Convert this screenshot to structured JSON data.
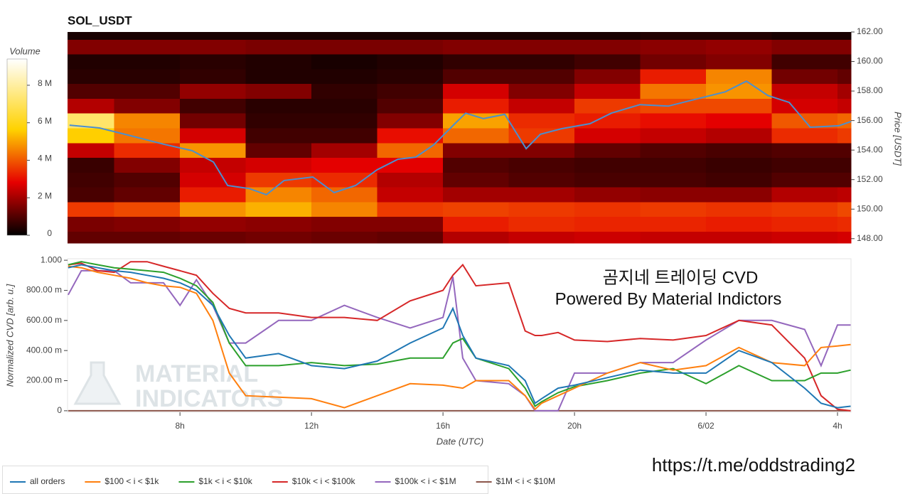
{
  "chart_data": [
    {
      "type": "heatmap",
      "title": "SOL_USDT",
      "ylabel": "Price [USDT]",
      "xlim": [
        4.58,
        28.41
      ],
      "ylim": [
        147.7,
        162
      ],
      "yticks": [
        {
          "value": 148,
          "label": "148.00"
        },
        {
          "value": 150,
          "label": "150.00"
        },
        {
          "value": 152,
          "label": "152.00"
        },
        {
          "value": 154,
          "label": "154.00"
        },
        {
          "value": 156,
          "label": "156.00"
        },
        {
          "value": 158,
          "label": "158.00"
        },
        {
          "value": 160,
          "label": "160.00"
        },
        {
          "value": 162,
          "label": "162.00"
        }
      ],
      "x_edges": [
        4.58,
        6,
        8,
        10,
        12,
        14,
        16,
        18,
        20,
        22,
        24,
        26,
        28,
        28.41
      ],
      "y_edges": [
        147.7,
        148.5,
        149.5,
        150.5,
        151.5,
        152.5,
        153.5,
        154.5,
        155.5,
        156.5,
        157.5,
        158.5,
        159.5,
        160.5,
        161.5,
        162
      ],
      "z": [
        [
          1200000.0,
          1200000.0,
          1300000.0,
          1400000.0,
          1300000.0,
          1200000.0,
          2200000.0,
          2400000.0,
          2500000.0,
          2400000.0,
          2400000.0,
          2500000.0,
          2600000.0
        ],
        [
          1500000.0,
          1600000.0,
          1800000.0,
          1700000.0,
          1600000.0,
          1600000.0,
          3200000.0,
          3400000.0,
          3300000.0,
          3300000.0,
          3200000.0,
          3300000.0,
          3400000.0
        ],
        [
          3600000.0,
          3800000.0,
          4800000.0,
          5200000.0,
          4600000.0,
          3600000.0,
          3700000.0,
          3600000.0,
          3500000.0,
          3600000.0,
          3500000.0,
          3600000.0,
          3800000.0
        ],
        [
          900000.0,
          1200000.0,
          3200000.0,
          4600000.0,
          4200000.0,
          2400000.0,
          2000000.0,
          2000000.0,
          1800000.0,
          1700000.0,
          1700000.0,
          2200000.0,
          2300000.0
        ],
        [
          800000.0,
          1000000.0,
          2600000.0,
          3600000.0,
          3400000.0,
          2200000.0,
          1200000.0,
          1000000.0,
          900000.0,
          900000.0,
          800000.0,
          1000000.0,
          1000000.0
        ],
        [
          700000.0,
          1600000.0,
          2400000.0,
          2600000.0,
          2800000.0,
          2800000.0,
          1000000.0,
          900000.0,
          800000.0,
          800000.0,
          700000.0,
          800000.0,
          800000.0
        ],
        [
          2400000.0,
          3400000.0,
          4800000.0,
          1200000.0,
          2000000.0,
          4200000.0,
          1600000.0,
          1600000.0,
          1200000.0,
          1000000.0,
          900000.0,
          1000000.0,
          1000000.0
        ],
        [
          5600000.0,
          4400000.0,
          2600000.0,
          800000.0,
          800000.0,
          3000000.0,
          4200000.0,
          3600000.0,
          2600000.0,
          2400000.0,
          2200000.0,
          3400000.0,
          3600000.0
        ],
        [
          7200000.0,
          4600000.0,
          1400000.0,
          600000.0,
          600000.0,
          1600000.0,
          5000000.0,
          3400000.0,
          3200000.0,
          3000000.0,
          2800000.0,
          4000000.0,
          4200000.0
        ],
        [
          2200000.0,
          1600000.0,
          800000.0,
          500000.0,
          500000.0,
          1000000.0,
          3200000.0,
          2400000.0,
          3600000.0,
          3800000.0,
          3800000.0,
          2600000.0,
          2400000.0
        ],
        [
          1000000.0,
          1000000.0,
          1800000.0,
          1600000.0,
          600000.0,
          800000.0,
          2600000.0,
          1600000.0,
          2400000.0,
          4400000.0,
          4800000.0,
          2400000.0,
          2000000.0
        ],
        [
          500000.0,
          500000.0,
          600000.0,
          400000.0,
          400000.0,
          500000.0,
          1000000.0,
          1000000.0,
          1600000.0,
          3200000.0,
          4600000.0,
          1400000.0,
          1200000.0
        ],
        [
          400000.0,
          400000.0,
          500000.0,
          400000.0,
          300000.0,
          400000.0,
          600000.0,
          600000.0,
          800000.0,
          1400000.0,
          1600000.0,
          800000.0,
          800000.0
        ],
        [
          1600000.0,
          1600000.0,
          1600000.0,
          1500000.0,
          1500000.0,
          1500000.0,
          1600000.0,
          1600000.0,
          1600000.0,
          1700000.0,
          1800000.0,
          1600000.0,
          1600000.0
        ],
        [
          300000.0,
          300000.0,
          300000.0,
          300000.0,
          300000.0,
          300000.0,
          300000.0,
          300000.0,
          300000.0,
          400000.0,
          400000.0,
          300000.0,
          300000.0
        ]
      ],
      "colorscale": [
        [
          0,
          "#000000"
        ],
        [
          0.3,
          "#e60000"
        ],
        [
          0.6,
          "#ffd200"
        ],
        [
          1,
          "#ffffff"
        ]
      ],
      "colorbar": {
        "title": "Volume",
        "lim": [
          0,
          9400000.0
        ],
        "ticks": [
          0,
          {
            "value": 2000000.0,
            "label": "2 M"
          },
          {
            "value": 4000000.0,
            "label": "4 M"
          },
          {
            "value": 6000000.0,
            "label": "6 M"
          },
          {
            "value": 8000000.0,
            "label": "8 M"
          }
        ]
      },
      "price": {
        "color": "#4a8fd0",
        "x": [
          4.64,
          5.55,
          6.42,
          7.5,
          8.37,
          9.02,
          9.45,
          10.1,
          10.63,
          11.17,
          12.04,
          12.69,
          13.34,
          13.99,
          14.63,
          15.17,
          15.71,
          16.36,
          16.69,
          17.23,
          17.88,
          18.53,
          18.96,
          19.61,
          20.47,
          21.12,
          21.99,
          22.85,
          23.71,
          24.58,
          25.23,
          25.88,
          26.53,
          27.17,
          28.04,
          28.41
        ],
        "values": [
          155.69,
          155.5,
          155.02,
          154.4,
          153.96,
          153.19,
          151.6,
          151.4,
          150.98,
          151.94,
          152.18,
          151.12,
          151.6,
          152.66,
          153.38,
          153.52,
          154.34,
          155.79,
          156.5,
          156.13,
          156.42,
          154.1,
          155.07,
          155.45,
          155.79,
          156.5,
          157.08,
          156.98,
          157.46,
          157.94,
          158.67,
          157.7,
          157.23,
          155.55,
          155.65,
          155.94
        ]
      }
    },
    {
      "type": "line",
      "xlabel": "Date (UTC)",
      "ylabel": "Normalized CVD [arb. u.]",
      "xlim": [
        4.58,
        28.41
      ],
      "ylim": [
        -0.01,
        1.01
      ],
      "xticks": [
        {
          "value": 8,
          "label": "8h"
        },
        {
          "value": 12,
          "label": "12h"
        },
        {
          "value": 16,
          "label": "16h"
        },
        {
          "value": 20,
          "label": "20h"
        },
        {
          "value": 24,
          "label": "6/02"
        },
        {
          "value": 28,
          "label": "4h"
        }
      ],
      "yticks": [
        0,
        {
          "value": 0.2,
          "label": "200.00 m"
        },
        {
          "value": 0.4,
          "label": "400.00 m"
        },
        {
          "value": 0.6,
          "label": "600.00 m"
        },
        {
          "value": 0.8,
          "label": "800.00 m"
        },
        {
          "value": 1,
          "label": "1.000"
        }
      ],
      "legend": "bottom",
      "x": [
        4.6,
        5,
        5.5,
        6,
        6.5,
        7,
        7.5,
        8,
        8.5,
        9,
        9.5,
        10,
        11,
        12,
        13,
        14,
        15,
        16,
        16.3,
        16.6,
        17,
        18,
        18.5,
        18.8,
        19,
        19.5,
        20,
        21,
        22,
        23,
        24,
        25,
        26,
        27,
        27.5,
        28,
        28.4
      ],
      "series": [
        {
          "name": "all orders",
          "color": "#1f77b4",
          "values": [
            0.95,
            0.97,
            0.95,
            0.93,
            0.92,
            0.9,
            0.88,
            0.85,
            0.8,
            0.7,
            0.5,
            0.35,
            0.38,
            0.3,
            0.28,
            0.33,
            0.45,
            0.55,
            0.68,
            0.5,
            0.35,
            0.3,
            0.2,
            0.05,
            0.08,
            0.15,
            0.17,
            0.22,
            0.27,
            0.25,
            0.25,
            0.4,
            0.32,
            0.15,
            0.05,
            0.02,
            0.03
          ]
        },
        {
          "name": "$100 < i < $1k",
          "color": "#ff7f0e",
          "values": [
            0.96,
            0.95,
            0.92,
            0.9,
            0.88,
            0.85,
            0.83,
            0.82,
            0.78,
            0.6,
            0.25,
            0.1,
            0.09,
            0.08,
            0.02,
            0.1,
            0.18,
            0.17,
            0.16,
            0.15,
            0.2,
            0.2,
            0.1,
            0.01,
            0.05,
            0.1,
            0.15,
            0.25,
            0.32,
            0.27,
            0.3,
            0.42,
            0.32,
            0.3,
            0.42,
            0.43,
            0.44
          ]
        },
        {
          "name": "$1k < i < $10k",
          "color": "#2ca02c",
          "values": [
            0.97,
            0.99,
            0.97,
            0.95,
            0.94,
            0.93,
            0.92,
            0.88,
            0.83,
            0.72,
            0.45,
            0.3,
            0.3,
            0.32,
            0.3,
            0.31,
            0.35,
            0.35,
            0.45,
            0.48,
            0.35,
            0.28,
            0.15,
            0.03,
            0.06,
            0.12,
            0.16,
            0.2,
            0.25,
            0.28,
            0.18,
            0.3,
            0.2,
            0.2,
            0.25,
            0.25,
            0.27
          ]
        },
        {
          "name": "$10k < i < $100k",
          "color": "#d62728",
          "values": [
            0.97,
            0.98,
            0.93,
            0.92,
            0.99,
            0.99,
            0.96,
            0.93,
            0.9,
            0.78,
            0.68,
            0.65,
            0.65,
            0.62,
            0.62,
            0.6,
            0.73,
            0.8,
            0.9,
            0.97,
            0.83,
            0.85,
            0.53,
            0.5,
            0.5,
            0.52,
            0.47,
            0.46,
            0.48,
            0.47,
            0.5,
            0.6,
            0.57,
            0.35,
            0.1,
            0.01,
            0.0
          ]
        },
        {
          "name": "$100k < i < $1M",
          "color": "#9467bd",
          "values": [
            0.77,
            0.93,
            0.93,
            0.93,
            0.85,
            0.85,
            0.85,
            0.7,
            0.87,
            0.7,
            0.45,
            0.45,
            0.6,
            0.6,
            0.7,
            0.62,
            0.55,
            0.62,
            0.89,
            0.35,
            0.2,
            0.18,
            0.1,
            0.0,
            0.0,
            0.0,
            0.25,
            0.25,
            0.32,
            0.32,
            0.47,
            0.6,
            0.6,
            0.54,
            0.3,
            0.57,
            0.57
          ]
        },
        {
          "name": "$1M < i < $10M",
          "color": "#8c564b",
          "values": [
            0,
            0,
            0,
            0,
            0,
            0,
            0,
            0,
            0,
            0,
            0,
            0,
            0,
            0,
            0,
            0,
            0,
            0,
            0,
            0,
            0,
            0,
            0,
            0,
            0,
            0,
            0,
            0,
            0,
            0,
            0,
            0,
            0,
            0,
            0,
            0,
            0
          ]
        }
      ],
      "annotations": [
        "곰지네 트레이딩 CVD",
        "Powered By Material Indictors"
      ],
      "watermark": [
        "MATERIAL",
        "INDICATORS"
      ]
    }
  ],
  "footer": {
    "url": "https://t.me/oddstrading2"
  }
}
